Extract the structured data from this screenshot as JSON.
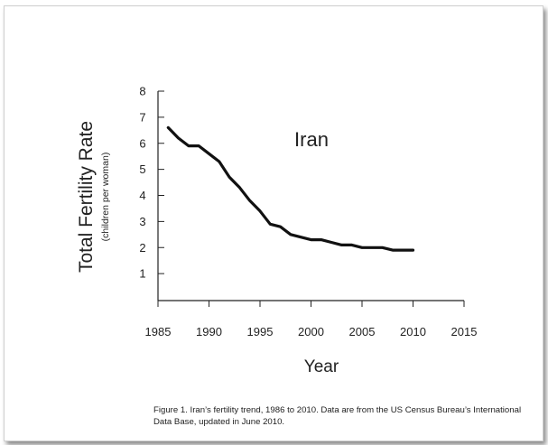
{
  "chart_data": {
    "type": "line",
    "title": "Iran",
    "ylabel": "Total Fertility Rate",
    "ylabel_sub": "(children per woman)",
    "xlabel": "Year",
    "xlim": [
      1985,
      2015
    ],
    "ylim": [
      0,
      8
    ],
    "xticks": [
      1985,
      1990,
      1995,
      2000,
      2005,
      2010,
      2015
    ],
    "yticks": [
      1,
      2,
      3,
      4,
      5,
      6,
      7,
      8
    ],
    "grid": false,
    "series": [
      {
        "x": [
          1986,
          1987,
          1988,
          1989,
          1990,
          1991,
          1992,
          1993,
          1994,
          1995,
          1996,
          1997,
          1998,
          1999,
          2000,
          2001,
          2002,
          2003,
          2004,
          2005,
          2006,
          2007,
          2008,
          2009,
          2010
        ],
        "values": [
          6.6,
          6.2,
          5.9,
          5.9,
          5.6,
          5.3,
          4.7,
          4.3,
          3.8,
          3.4,
          2.9,
          2.8,
          2.5,
          2.4,
          2.3,
          2.3,
          2.2,
          2.1,
          2.1,
          2.0,
          2.0,
          2.0,
          1.9,
          1.9,
          1.9
        ],
        "color": "#111111"
      }
    ],
    "caption": "Figure 1.  Iran’s fertility trend, 1986 to 2010.  Data are from the US Census Bureau’s International Data Base, updated in June 2010."
  }
}
